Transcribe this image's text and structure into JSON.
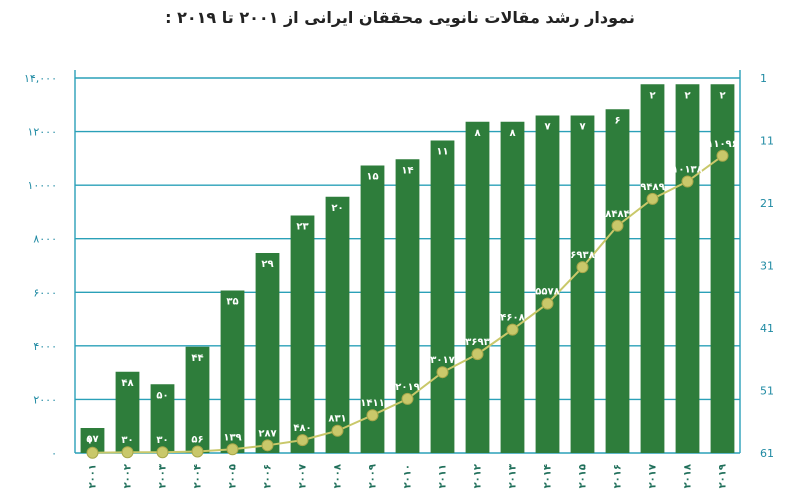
{
  "chart_data": {
    "type": "bar",
    "title": "نمودار رشد مقالات نانویی محققان ایرانی از ۲۰۰۱ تا ۲۰۱۹ :",
    "categories": [
      "۲۰۰۱",
      "۲۰۰۲",
      "۲۰۰۳",
      "۲۰۰۴",
      "۲۰۰۵",
      "۲۰۰۶",
      "۲۰۰۷",
      "۲۰۰۸",
      "۲۰۰۹",
      "۲۰۱۰",
      "۲۰۱۱",
      "۲۰۱۲",
      "۲۰۱۳",
      "۲۰۱۴",
      "۲۰۱۵",
      "۲۰۱۶",
      "۲۰۱۷",
      "۲۰۱۸",
      "۲۰۱۹"
    ],
    "series": [
      {
        "values": [
          57,
          48,
          50,
          44,
          35,
          29,
          23,
          20,
          15,
          14,
          11,
          8,
          8,
          7,
          7,
          6,
          2,
          2,
          2
        ],
        "labels": [
          "۵۷",
          "۴۸",
          "۵۰",
          "۴۴",
          "۳۵",
          "۲۹",
          "۲۳",
          "۲۰",
          "۱۵",
          "۱۴",
          "۱۱",
          "۸",
          "۸",
          "۷",
          "۷",
          "۶",
          "۲",
          "۲",
          "۲"
        ],
        "axis": "right",
        "color": "#2e7d3b"
      },
      {
        "values": [
          10,
          30,
          30,
          56,
          139,
          287,
          480,
          831,
          1411,
          2019,
          3017,
          3693,
          4608,
          5578,
          6938,
          8484,
          9489,
          10138,
          11096
        ],
        "labels": [
          "۱۰",
          "۳۰",
          "۳۰",
          "۵۶",
          "۱۳۹",
          "۲۸۷",
          "۴۸۰",
          "۸۳۱",
          "۱۴۱۱",
          "۲۰۱۹",
          "۳۰۱۷",
          "۳۶۹۳",
          "۴۶۰۸",
          "۵۵۷۸",
          "۶۹۳۸",
          "۸۴۸۴",
          "۹۴۸۹",
          "۱۰۱۳۸",
          "۱۱۰۹۶"
        ],
        "type": "line",
        "axis": "left",
        "color": "#c9c86a"
      }
    ],
    "yleft": {
      "ticks": [
        0,
        2000,
        4000,
        6000,
        8000,
        10000,
        12000,
        14000
      ],
      "tick_labels": [
        "۰",
        "۲۰۰۰",
        "۴۰۰۰",
        "۶۰۰۰",
        "۸۰۰۰",
        "۱۰۰۰۰",
        "۱۲۰۰۰",
        "۱۴,۰۰۰"
      ],
      "ylim": [
        0,
        14000
      ]
    },
    "yright": {
      "ticks": [
        1,
        11,
        21,
        31,
        41,
        51,
        61
      ],
      "tick_labels": [
        "1",
        "11",
        "21",
        "31",
        "41",
        "51",
        "61"
      ],
      "ylim": [
        61,
        1
      ],
      "inverted": true
    },
    "grid": true,
    "legend": "none"
  }
}
